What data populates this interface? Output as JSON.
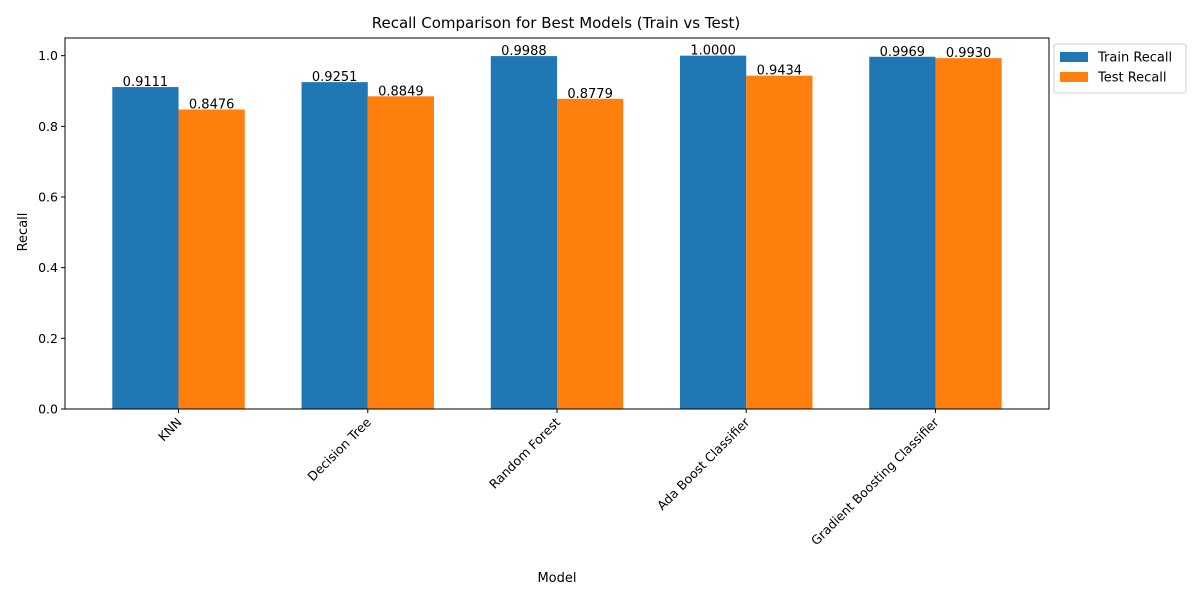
{
  "chart_data": {
    "type": "bar",
    "title": "Recall Comparison for Best Models (Train vs Test)",
    "xlabel": "Model",
    "ylabel": "Recall",
    "categories": [
      "KNN",
      "Decision Tree",
      "Random Forest",
      "Ada Boost Classifier",
      "Gradient Boosting Classifier"
    ],
    "series": [
      {
        "name": "Train Recall",
        "color": "#1f77b4",
        "values": [
          0.9111,
          0.9251,
          0.9988,
          1.0,
          0.9969
        ],
        "labels": [
          "0.9111",
          "0.9251",
          "0.9988",
          "1.0000",
          "0.9969"
        ]
      },
      {
        "name": "Test Recall",
        "color": "#ff7f0e",
        "values": [
          0.8476,
          0.8849,
          0.8779,
          0.9434,
          0.993
        ],
        "labels": [
          "0.8476",
          "0.8849",
          "0.8779",
          "0.9434",
          "0.9930"
        ]
      }
    ],
    "ylim": [
      0,
      1.05
    ],
    "yticks": [
      "0.0",
      "0.2",
      "0.4",
      "0.6",
      "0.8",
      "1.0"
    ],
    "legend_position": "outside-top-right",
    "grid": false
  }
}
